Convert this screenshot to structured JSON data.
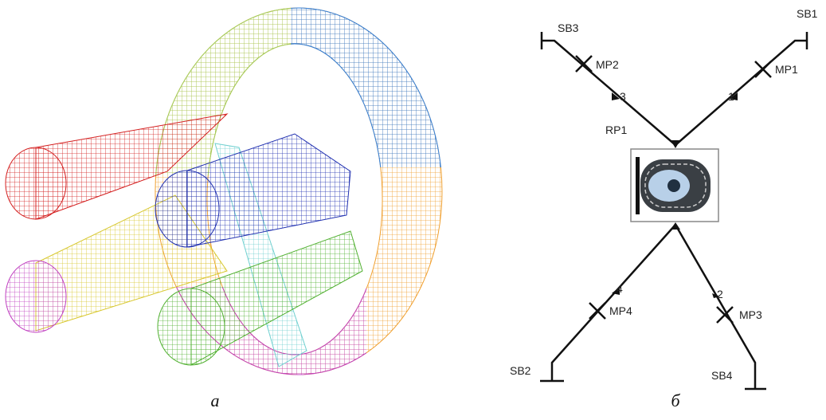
{
  "left_panel": {
    "caption": "а"
  },
  "right_panel": {
    "caption": "б",
    "labels": {
      "sb3": "SB3",
      "sb1": "SB1",
      "mp2": "MP2",
      "mp1": "MP1",
      "branch3": "3",
      "branch1": "1",
      "rp1": "RP1",
      "branch4": "4",
      "branch2": "2",
      "mp4": "MP4",
      "mp3": "MP3",
      "sb2": "SB2",
      "sb4": "SB4"
    }
  }
}
